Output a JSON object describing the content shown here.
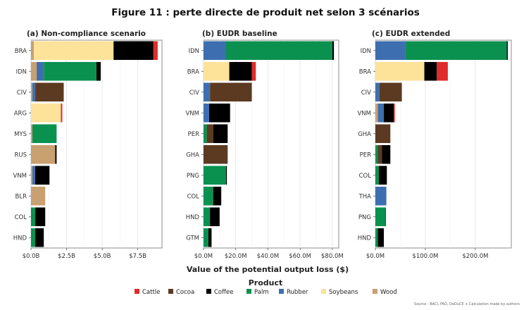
{
  "figure": {
    "title": "Figure 11 : perte directe de produit net selon 3 scénarios",
    "xlabel": "Value of the potential output loss ($)",
    "legend_title": "Product",
    "source": "Source : BACI, FAO, DeDuCE + Calculation made by authors"
  },
  "legend": [
    {
      "name": "Cattle",
      "color": "#e02b2b"
    },
    {
      "name": "Cocoa",
      "color": "#5c3a21"
    },
    {
      "name": "Coffee",
      "color": "#000000"
    },
    {
      "name": "Palm",
      "color": "#0a9150"
    },
    {
      "name": "Rubber",
      "color": "#3d6fb0"
    },
    {
      "name": "Soybeans",
      "color": "#fde29a"
    },
    {
      "name": "Wood",
      "color": "#c9a070"
    }
  ],
  "chart_data": [
    {
      "type": "bar",
      "orientation": "horizontal",
      "stacked": true,
      "title": "(a) Non-compliance scenario",
      "unit": "B",
      "xlim": [
        0,
        9.2
      ],
      "ticks": [
        0,
        2.5,
        5.0,
        7.5
      ],
      "tick_labels": [
        "$0.0B",
        "$2.5B",
        "$5.0B",
        "$7.5B"
      ],
      "categories": [
        "BRA",
        "IDN",
        "CIV",
        "ARG",
        "MYS",
        "RUS",
        "VNM",
        "BLR",
        "COL",
        "HND"
      ],
      "series": [
        {
          "name": "Wood",
          "values": [
            0.2,
            0.4,
            0.1,
            0.0,
            0.1,
            1.7,
            0.1,
            1.0,
            0.0,
            0.0
          ]
        },
        {
          "name": "Rubber",
          "values": [
            0.0,
            0.5,
            0.2,
            0.0,
            0.0,
            0.0,
            0.2,
            0.0,
            0.0,
            0.0
          ]
        },
        {
          "name": "Palm",
          "values": [
            0.0,
            3.7,
            0.0,
            0.0,
            1.7,
            0.0,
            0.0,
            0.0,
            0.3,
            0.3
          ]
        },
        {
          "name": "Soybeans",
          "values": [
            5.6,
            0.0,
            0.0,
            2.1,
            0.0,
            0.0,
            0.0,
            0.0,
            0.0,
            0.0
          ]
        },
        {
          "name": "Cocoa",
          "values": [
            0.0,
            0.0,
            2.0,
            0.0,
            0.0,
            0.0,
            0.0,
            0.0,
            0.0,
            0.0
          ]
        },
        {
          "name": "Coffee",
          "values": [
            2.8,
            0.3,
            0.0,
            0.0,
            0.0,
            0.1,
            1.0,
            0.0,
            0.7,
            0.6
          ]
        },
        {
          "name": "Cattle",
          "values": [
            0.3,
            0.0,
            0.0,
            0.1,
            0.0,
            0.0,
            0.0,
            0.0,
            0.0,
            0.0
          ]
        }
      ]
    },
    {
      "type": "bar",
      "orientation": "horizontal",
      "stacked": true,
      "title": "(b) EUDR baseline",
      "unit": "M",
      "xlim": [
        0,
        84
      ],
      "ticks": [
        0,
        20,
        40,
        60,
        80
      ],
      "tick_labels": [
        "$0.0M",
        "$20.0M",
        "$40.0M",
        "$60.0M",
        "$80.0M"
      ],
      "categories": [
        "IDN",
        "BRA",
        "CIV",
        "VNM",
        "PER",
        "GHA",
        "PNG",
        "COL",
        "HND",
        "GTM"
      ],
      "series": [
        {
          "name": "Wood",
          "values": [
            0.0,
            0.0,
            0.0,
            0.0,
            0.0,
            0.0,
            0.0,
            0.0,
            0.0,
            0.0
          ]
        },
        {
          "name": "Rubber",
          "values": [
            14.0,
            0.0,
            4.0,
            3.5,
            0.0,
            0.0,
            0.0,
            0.0,
            0.0,
            0.0
          ]
        },
        {
          "name": "Palm",
          "values": [
            66.0,
            0.0,
            0.0,
            0.0,
            2.0,
            0.0,
            14.0,
            6.0,
            4.0,
            3.0
          ]
        },
        {
          "name": "Soybeans",
          "values": [
            0.0,
            16.0,
            0.0,
            0.0,
            0.0,
            0.0,
            0.0,
            0.0,
            0.0,
            0.0
          ]
        },
        {
          "name": "Cocoa",
          "values": [
            0.0,
            0.0,
            26.0,
            0.0,
            4.0,
            15.0,
            0.0,
            0.0,
            0.0,
            0.0
          ]
        },
        {
          "name": "Coffee",
          "values": [
            1.0,
            14.0,
            0.0,
            13.0,
            9.0,
            0.0,
            0.5,
            5.0,
            6.0,
            2.0
          ]
        },
        {
          "name": "Cattle",
          "values": [
            0.0,
            2.5,
            0.0,
            0.0,
            0.0,
            0.0,
            0.0,
            0.0,
            0.0,
            0.0
          ]
        }
      ]
    },
    {
      "type": "bar",
      "orientation": "horizontal",
      "stacked": true,
      "title": "(c) EUDR extended",
      "unit": "M",
      "xlim": [
        0,
        272
      ],
      "ticks": [
        0,
        100,
        200
      ],
      "tick_labels": [
        "$0.0M",
        "$100.0M",
        "$200.0M"
      ],
      "categories": [
        "IDN",
        "BRA",
        "CIV",
        "VNM",
        "GHA",
        "PER",
        "COL",
        "THA",
        "PNG",
        "HND"
      ],
      "series": [
        {
          "name": "Wood",
          "values": [
            0.0,
            0.0,
            0.0,
            5.0,
            0.0,
            0.0,
            0.0,
            0.0,
            0.0,
            0.0
          ]
        },
        {
          "name": "Rubber",
          "values": [
            60.0,
            0.0,
            8.0,
            12.0,
            0.0,
            0.0,
            0.0,
            22.0,
            0.0,
            0.0
          ]
        },
        {
          "name": "Palm",
          "values": [
            203.0,
            0.0,
            0.0,
            0.0,
            0.0,
            5.0,
            7.0,
            0.0,
            20.0,
            5.0
          ]
        },
        {
          "name": "Soybeans",
          "values": [
            0.0,
            98.0,
            0.0,
            0.0,
            0.0,
            0.0,
            0.0,
            0.0,
            0.0,
            0.0
          ]
        },
        {
          "name": "Cocoa",
          "values": [
            0.0,
            0.0,
            45.0,
            0.0,
            30.0,
            8.0,
            0.0,
            0.0,
            0.0,
            0.0
          ]
        },
        {
          "name": "Coffee",
          "values": [
            2.0,
            25.0,
            0.0,
            20.0,
            0.0,
            17.0,
            16.0,
            0.0,
            1.0,
            12.0
          ]
        },
        {
          "name": "Cattle",
          "values": [
            0.0,
            22.0,
            0.0,
            2.0,
            0.0,
            0.0,
            0.0,
            0.0,
            0.0,
            0.0
          ]
        }
      ]
    }
  ]
}
